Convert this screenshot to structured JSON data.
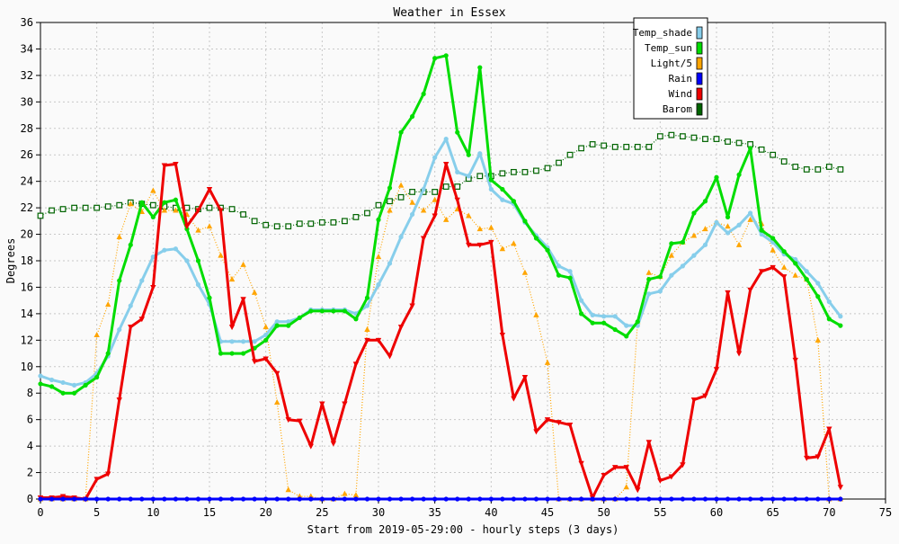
{
  "chart_data": {
    "type": "line",
    "title": "Weather in Essex",
    "xlabel": "Start from 2019-05-29:00 - hourly steps (3 days)",
    "ylabel": "Degrees",
    "xlim": [
      0,
      75
    ],
    "ylim": [
      0,
      36
    ],
    "x_ticks": [
      0,
      5,
      10,
      15,
      20,
      25,
      30,
      35,
      40,
      45,
      50,
      55,
      60,
      65,
      70,
      75
    ],
    "y_ticks": [
      0,
      2,
      4,
      6,
      8,
      10,
      12,
      14,
      16,
      18,
      20,
      22,
      24,
      26,
      28,
      30,
      32,
      34,
      36
    ],
    "grid": true,
    "legend_position": "top-right",
    "series": [
      {
        "name": "Temp_shade",
        "color": "#87ceeb",
        "marker": "dot",
        "line": "solid-thick",
        "values": [
          9.3,
          9.0,
          8.8,
          8.6,
          8.8,
          9.5,
          10.8,
          12.8,
          14.6,
          16.5,
          18.3,
          18.8,
          18.9,
          18.0,
          16.2,
          14.7,
          11.9,
          11.9,
          11.9,
          11.9,
          12.4,
          13.4,
          13.4,
          13.7,
          14.3,
          14.3,
          14.3,
          14.3,
          14.0,
          14.6,
          16.2,
          17.8,
          19.8,
          21.5,
          23.4,
          25.8,
          27.2,
          24.7,
          24.4,
          26.1,
          23.4,
          22.6,
          22.3,
          20.9,
          19.9,
          19.0,
          17.6,
          17.2,
          15.0,
          13.9,
          13.8,
          13.8,
          13.1,
          13.1,
          15.5,
          15.7,
          16.9,
          17.6,
          18.4,
          19.2,
          20.9,
          20.1,
          20.7,
          21.6,
          20.0,
          19.4,
          18.5,
          18.1,
          17.2,
          16.3,
          14.9,
          13.8
        ]
      },
      {
        "name": "Temp_sun",
        "color": "#00dd00",
        "marker": "dot",
        "line": "solid-thick",
        "values": [
          8.7,
          8.5,
          8.0,
          8.0,
          8.6,
          9.2,
          11.0,
          16.5,
          19.2,
          22.4,
          21.3,
          22.4,
          22.6,
          20.4,
          18.0,
          15.2,
          11.0,
          11.0,
          11.0,
          11.4,
          12.0,
          13.1,
          13.1,
          13.7,
          14.2,
          14.2,
          14.2,
          14.2,
          13.6,
          15.2,
          21.1,
          23.5,
          27.7,
          28.9,
          30.6,
          33.3,
          33.5,
          27.7,
          26.0,
          32.6,
          24.1,
          23.4,
          22.5,
          21.0,
          19.7,
          18.8,
          16.9,
          16.7,
          14.0,
          13.3,
          13.3,
          12.8,
          12.3,
          13.4,
          16.6,
          16.8,
          19.3,
          19.4,
          21.6,
          22.5,
          24.3,
          21.3,
          24.5,
          26.5,
          20.3,
          19.7,
          18.7,
          17.8,
          16.6,
          15.3,
          13.6,
          13.1
        ]
      },
      {
        "name": "Light/5",
        "color": "#ffa500",
        "marker": "triangle-up",
        "line": "dotted",
        "values": [
          0,
          0,
          0,
          0,
          0,
          12.4,
          14.7,
          19.8,
          22.3,
          21.7,
          23.3,
          21.8,
          21.8,
          21.5,
          20.3,
          20.6,
          18.4,
          16.6,
          17.7,
          15.6,
          13.0,
          7.3,
          0.7,
          0.2,
          0.2,
          0,
          0,
          0.4,
          0.3,
          12.8,
          18.3,
          21.8,
          23.7,
          22.4,
          21.8,
          22.6,
          21.1,
          21.9,
          21.4,
          20.4,
          20.5,
          18.9,
          19.3,
          17.1,
          13.9,
          10.3,
          0,
          0,
          0,
          0,
          0,
          0,
          0.9,
          13.4,
          17.1,
          16.8,
          18.4,
          19.4,
          19.9,
          20.4,
          20.9,
          20.6,
          19.2,
          21.1,
          20.8,
          18.8,
          17.5,
          16.9,
          16.6,
          12.0,
          0,
          0
        ]
      },
      {
        "name": "Rain",
        "color": "#0000ff",
        "marker": "dot",
        "line": "solid-thick",
        "values": [
          0,
          0,
          0,
          0,
          0,
          0,
          0,
          0,
          0,
          0,
          0,
          0,
          0,
          0,
          0,
          0,
          0,
          0,
          0,
          0,
          0,
          0,
          0,
          0,
          0,
          0,
          0,
          0,
          0,
          0,
          0,
          0,
          0,
          0,
          0,
          0,
          0,
          0,
          0,
          0,
          0,
          0,
          0,
          0,
          0,
          0,
          0,
          0,
          0,
          0,
          0,
          0,
          0,
          0,
          0,
          0,
          0,
          0,
          0,
          0,
          0,
          0,
          0,
          0,
          0,
          0,
          0,
          0,
          0,
          0,
          0,
          0
        ]
      },
      {
        "name": "Wind",
        "color": "#ee0000",
        "marker": "triangle-down",
        "line": "solid-thick",
        "values": [
          0.1,
          0.1,
          0.2,
          0.1,
          0,
          1.5,
          1.9,
          7.5,
          13.0,
          13.6,
          16.0,
          25.2,
          25.3,
          20.6,
          21.8,
          23.4,
          21.8,
          13.0,
          15.1,
          10.4,
          10.6,
          9.5,
          6.0,
          5.9,
          4.0,
          7.2,
          4.2,
          7.2,
          10.2,
          12.0,
          12.0,
          10.8,
          13.0,
          14.6,
          19.7,
          21.4,
          25.3,
          22.6,
          19.2,
          19.2,
          19.4,
          12.4,
          7.6,
          9.2,
          5.1,
          6.0,
          5.8,
          5.6,
          2.7,
          0.1,
          1.8,
          2.4,
          2.4,
          0.7,
          4.3,
          1.4,
          1.7,
          2.6,
          7.5,
          7.8,
          9.8,
          15.6,
          11.0,
          15.8,
          17.2,
          17.5,
          16.8,
          10.5,
          3.1,
          3.2,
          5.3,
          0.9
        ]
      },
      {
        "name": "Barom",
        "color": "#006400",
        "marker": "open-square",
        "line": "dotted",
        "values": [
          21.4,
          21.8,
          21.9,
          22.0,
          22.0,
          22.0,
          22.1,
          22.2,
          22.4,
          22.3,
          22.2,
          22.1,
          22.0,
          22.0,
          21.9,
          22.0,
          22.0,
          21.9,
          21.5,
          21.0,
          20.7,
          20.6,
          20.6,
          20.8,
          20.8,
          20.9,
          20.9,
          21.0,
          21.3,
          21.6,
          22.2,
          22.5,
          22.8,
          23.2,
          23.2,
          23.2,
          23.6,
          23.6,
          24.2,
          24.4,
          24.4,
          24.6,
          24.7,
          24.7,
          24.8,
          25.0,
          25.4,
          26.0,
          26.5,
          26.8,
          26.7,
          26.6,
          26.6,
          26.6,
          26.6,
          27.4,
          27.5,
          27.4,
          27.3,
          27.2,
          27.2,
          27.0,
          26.9,
          26.8,
          26.4,
          26.0,
          25.5,
          25.1,
          24.9,
          24.9,
          25.1,
          24.9
        ]
      }
    ]
  }
}
